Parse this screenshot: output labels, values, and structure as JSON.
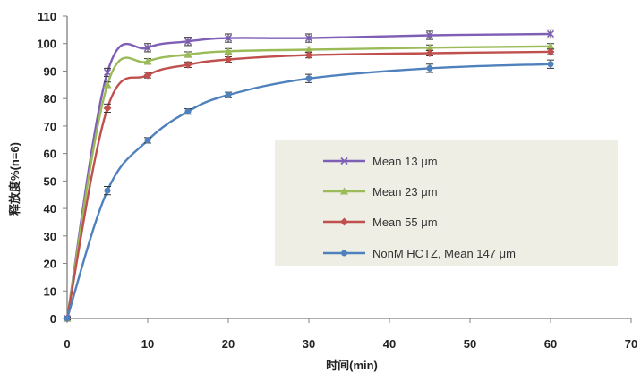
{
  "chart_data": {
    "type": "line",
    "xlabel": "时间(min)",
    "ylabel": "释放度%(n=6)",
    "xlim": [
      0,
      70
    ],
    "ylim": [
      0,
      110
    ],
    "x_ticks": [
      0,
      10,
      20,
      30,
      40,
      50,
      60,
      70
    ],
    "y_ticks": [
      0,
      10,
      20,
      30,
      40,
      50,
      60,
      70,
      80,
      90,
      100,
      110
    ],
    "grid": false,
    "legend_position": "center-right",
    "x": [
      0,
      5,
      10,
      15,
      20,
      30,
      45,
      60
    ],
    "series": [
      {
        "name": "Mean 13 μm",
        "color": "#7f5fb5",
        "marker": "x",
        "values": [
          0,
          89.5,
          98.5,
          100.8,
          102,
          102,
          103,
          103.5
        ],
        "errors": [
          0.5,
          1.5,
          1.5,
          1.5,
          1.5,
          1.5,
          1.5,
          1.5
        ]
      },
      {
        "name": "Mean 23 μm",
        "color": "#9bbb59",
        "marker": "triangle",
        "values": [
          0,
          85,
          93.5,
          96,
          97.2,
          97.8,
          98.5,
          99
        ],
        "errors": [
          0.5,
          1.0,
          1.0,
          1.0,
          1.0,
          1.0,
          1.0,
          1.0
        ]
      },
      {
        "name": "Mean 55 μm",
        "color": "#c0504d",
        "marker": "diamond",
        "values": [
          0,
          76.5,
          88.5,
          92.3,
          94.2,
          95.8,
          96.5,
          97
        ],
        "errors": [
          0.5,
          1.5,
          1.0,
          1.0,
          1.0,
          1.0,
          1.0,
          1.0
        ]
      },
      {
        "name": "NonM HCTZ, Mean 147 μm",
        "color": "#4f81bd",
        "marker": "dot",
        "values": [
          0,
          46.5,
          64.8,
          75.3,
          81.3,
          87.3,
          91,
          92.5
        ],
        "errors": [
          0.5,
          1.5,
          1.0,
          1.0,
          1.0,
          1.5,
          1.5,
          1.5
        ]
      }
    ]
  },
  "style": {
    "legend_background": "#eeeee4",
    "axis_color": "#808080"
  }
}
